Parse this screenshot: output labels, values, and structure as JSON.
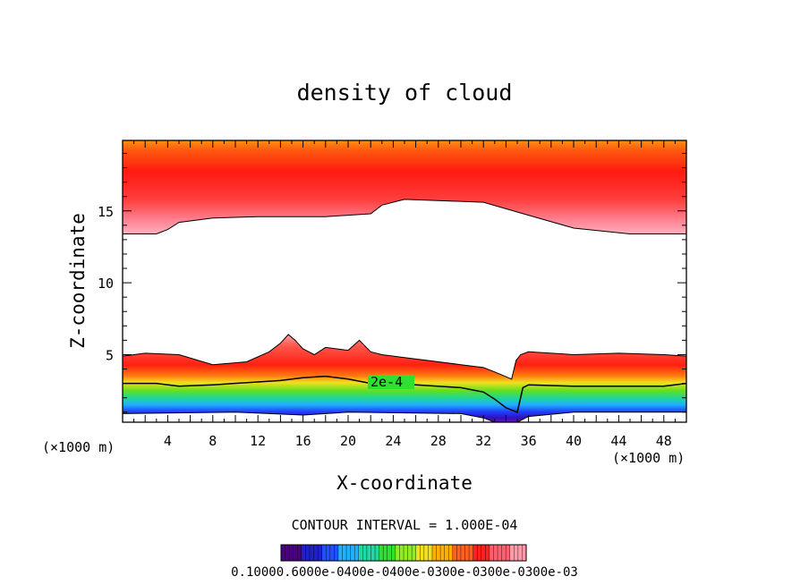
{
  "chart_data": {
    "type": "heatmap",
    "title": "density of cloud",
    "xlabel": "X-coordinate",
    "ylabel": "Z-coordinate",
    "x_unit": "(×1000 m)",
    "x_unit_right": "(×1000 m)",
    "xlim": [
      0,
      50
    ],
    "ylim": [
      0.3,
      19.9
    ],
    "x_ticks": [
      4,
      8,
      12,
      16,
      20,
      24,
      28,
      32,
      36,
      40,
      44,
      48
    ],
    "y_ticks": [
      5,
      10,
      15
    ],
    "contour_interval_text": "CONTOUR INTERVAL = 1.000E-04",
    "contour_label": "2e-4",
    "colorbar_labels": "0.10000.6000e-0400e-0400e-0300e-0300e-0300e-03",
    "colorbar_colors": [
      "#4b0082",
      "#2020c8",
      "#2050ff",
      "#20b0ff",
      "#20d8a0",
      "#30e030",
      "#90ee20",
      "#f0e020",
      "#ffb000",
      "#ff6020",
      "#ff2020",
      "#ff6070",
      "#ff9aa8"
    ],
    "upper_layer": {
      "base_x": [
        0,
        3,
        4,
        5,
        8,
        12,
        18,
        22,
        23,
        25,
        32,
        36,
        40,
        45,
        50
      ],
      "base_z": [
        13.4,
        13.4,
        13.7,
        14.2,
        14.5,
        14.6,
        14.6,
        14.8,
        15.4,
        15.8,
        15.6,
        14.7,
        13.8,
        13.4,
        13.4
      ]
    },
    "lower_layer": {
      "top_x": [
        0,
        2,
        5,
        8,
        11,
        13,
        14,
        14.7,
        15.3,
        16,
        17,
        18,
        20,
        21,
        22,
        23,
        25,
        30,
        32,
        33,
        34.5,
        34.9,
        35.3,
        36,
        40,
        44,
        48,
        50
      ],
      "top_z": [
        4.9,
        5.1,
        5.0,
        4.3,
        4.5,
        5.2,
        5.8,
        6.4,
        6.0,
        5.4,
        5.0,
        5.5,
        5.3,
        6.0,
        5.2,
        5.0,
        4.8,
        4.3,
        4.1,
        3.8,
        3.3,
        4.6,
        5.0,
        5.2,
        5.0,
        5.1,
        5.0,
        4.9
      ],
      "contour_2e4_x": [
        0,
        3,
        5,
        8,
        12,
        14,
        16,
        18,
        20,
        22,
        26,
        30,
        32,
        33,
        34,
        35,
        35.5,
        36,
        40,
        44,
        48,
        50
      ],
      "contour_2e4_z": [
        3.0,
        3.0,
        2.8,
        2.9,
        3.1,
        3.2,
        3.4,
        3.5,
        3.3,
        3.0,
        2.9,
        2.7,
        2.4,
        1.9,
        1.3,
        1.0,
        2.7,
        2.9,
        2.8,
        2.8,
        2.8,
        3.0
      ],
      "bottom_x": [
        0,
        10,
        16,
        20,
        30,
        32,
        33,
        35,
        36,
        40,
        50
      ],
      "bottom_z": [
        0.9,
        1.0,
        0.8,
        1.0,
        0.9,
        0.6,
        0.3,
        0.3,
        0.7,
        1.0,
        1.0
      ]
    }
  }
}
